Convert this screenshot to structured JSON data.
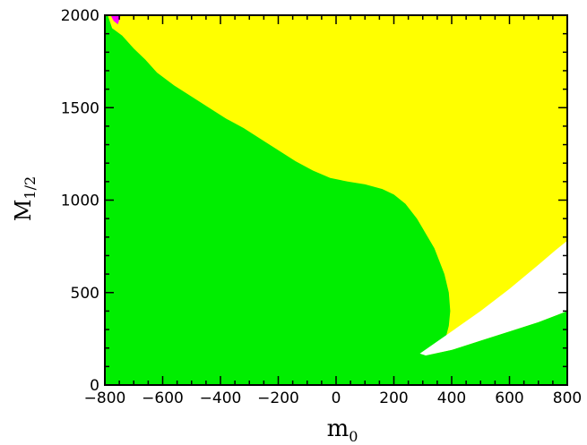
{
  "chart_data": {
    "type": "area",
    "xlabel": "m",
    "xlabel_subscript": "0",
    "ylabel": "M",
    "ylabel_subscript": "1/2",
    "xlim": [
      -800,
      800
    ],
    "ylim": [
      0,
      2000
    ],
    "x_ticks": [
      -800,
      -600,
      -400,
      -200,
      0,
      200,
      400,
      600,
      800
    ],
    "x_tick_labels": [
      "−800",
      "−600",
      "−400",
      "−200",
      "0",
      "200",
      "400",
      "600",
      "800"
    ],
    "y_ticks": [
      0,
      500,
      1000,
      1500,
      2000
    ],
    "y_tick_labels": [
      "0",
      "500",
      "1000",
      "1500",
      "2000"
    ],
    "grid": false,
    "colors": {
      "background_region": "#ffff00",
      "green_region": "#00ee00",
      "white_region": "#ffffff",
      "magenta_region": "#ff00ff",
      "axis": "#000000"
    },
    "regions": [
      {
        "color": "green",
        "boundary": [
          [
            -790,
            2000
          ],
          [
            -775,
            1930
          ],
          [
            -740,
            1890
          ],
          [
            -700,
            1820
          ],
          [
            -660,
            1760
          ],
          [
            -620,
            1690
          ],
          [
            -560,
            1620
          ],
          [
            -500,
            1560
          ],
          [
            -440,
            1500
          ],
          [
            -380,
            1440
          ],
          [
            -320,
            1390
          ],
          [
            -260,
            1330
          ],
          [
            -200,
            1270
          ],
          [
            -140,
            1210
          ],
          [
            -80,
            1160
          ],
          [
            -20,
            1120
          ],
          [
            40,
            1100
          ],
          [
            100,
            1085
          ],
          [
            160,
            1060
          ],
          [
            200,
            1030
          ],
          [
            240,
            980
          ],
          [
            280,
            900
          ],
          [
            310,
            820
          ],
          [
            340,
            740
          ],
          [
            360,
            660
          ],
          [
            375,
            600
          ],
          [
            390,
            500
          ],
          [
            395,
            400
          ],
          [
            390,
            320
          ],
          [
            380,
            260
          ],
          [
            360,
            220
          ],
          [
            330,
            190
          ],
          [
            300,
            170
          ],
          [
            310,
            160
          ],
          [
            400,
            190
          ],
          [
            500,
            240
          ],
          [
            600,
            290
          ],
          [
            700,
            340
          ],
          [
            800,
            400
          ],
          [
            800,
            0
          ],
          [
            -800,
            0
          ],
          [
            -800,
            2000
          ]
        ]
      },
      {
        "color": "white",
        "boundary": [
          [
            290,
            170
          ],
          [
            400,
            290
          ],
          [
            500,
            400
          ],
          [
            600,
            520
          ],
          [
            700,
            650
          ],
          [
            760,
            730
          ],
          [
            800,
            780
          ],
          [
            800,
            400
          ],
          [
            700,
            340
          ],
          [
            600,
            290
          ],
          [
            500,
            240
          ],
          [
            400,
            190
          ],
          [
            310,
            160
          ]
        ]
      },
      {
        "color": "magenta",
        "boundary": [
          [
            -780,
            2000
          ],
          [
            -745,
            2000
          ],
          [
            -755,
            1950
          ],
          [
            -770,
            1970
          ]
        ]
      }
    ]
  }
}
